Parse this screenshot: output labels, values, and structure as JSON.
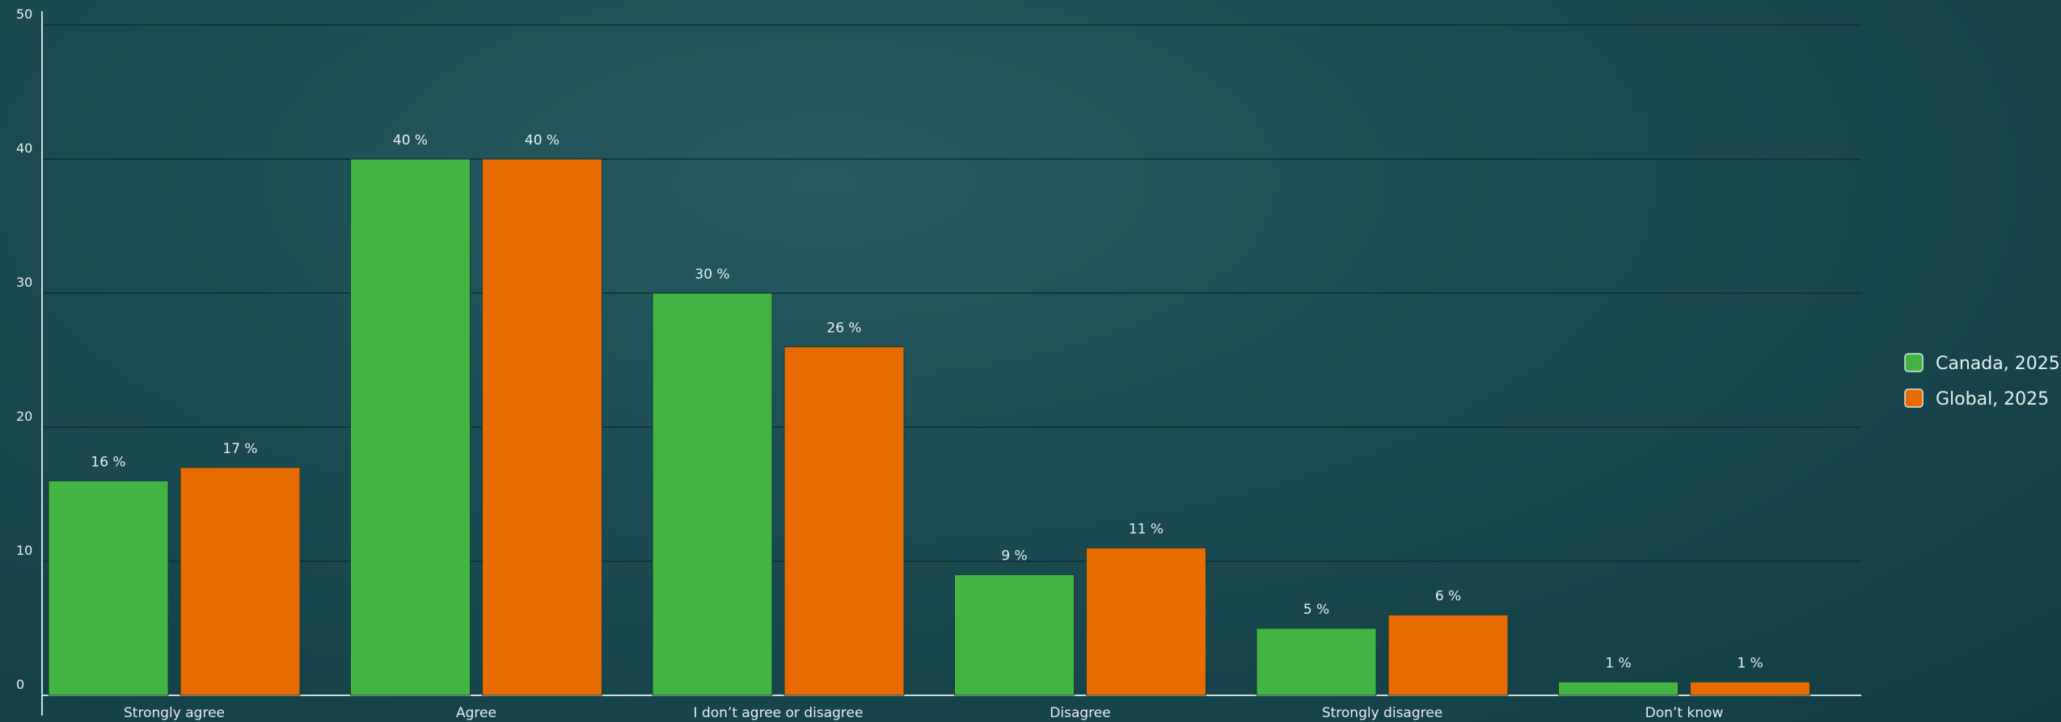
{
  "chart_data": {
    "type": "bar",
    "categories": [
      "Strongly agree",
      "Agree",
      "I don’t agree or disagree",
      "Disagree",
      "Strongly disagree",
      "Don’t know"
    ],
    "series": [
      {
        "name": "Canada, 2025",
        "values": [
          16,
          40,
          30,
          9,
          5,
          1
        ],
        "labels": [
          "16 %",
          "40 %",
          "30 %",
          "9 %",
          "5 %",
          "1 %"
        ],
        "color": "#43b343"
      },
      {
        "name": "Global, 2025",
        "values": [
          17,
          40,
          26,
          11,
          6,
          1
        ],
        "labels": [
          "17 %",
          "40 %",
          "26 %",
          "11 %",
          "6 %",
          "1 %"
        ],
        "color": "#e76b00"
      }
    ],
    "yticks": [
      "0",
      "10",
      "20",
      "30",
      "40",
      "50"
    ],
    "ylim": [
      0,
      50
    ],
    "grid": true,
    "legend": "right",
    "title": "",
    "xlabel": "",
    "ylabel": ""
  }
}
